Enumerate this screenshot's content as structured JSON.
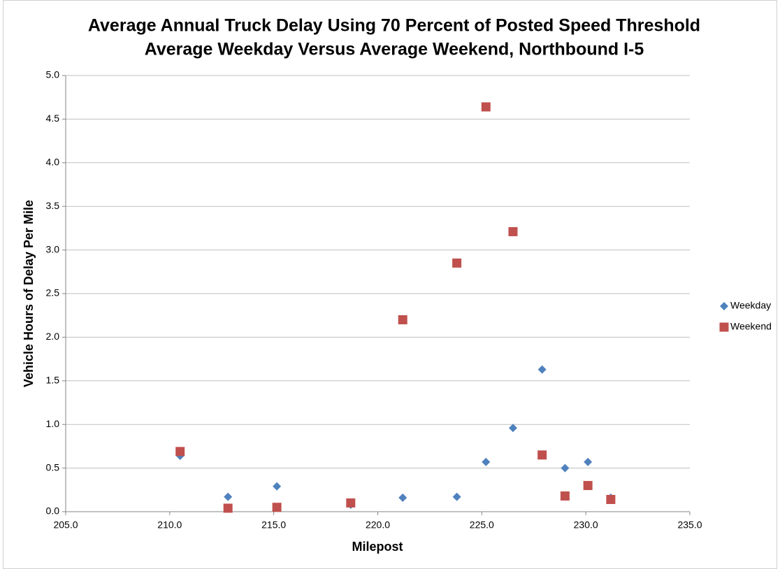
{
  "chart_data": {
    "type": "scatter",
    "title": "Average Annual Truck Delay Using 70 Percent of Posted Speed Threshold",
    "subtitle": "Average Weekday Versus Average Weekend, Northbound I-5",
    "x_label": "Milepost",
    "y_label": "Vehicle Hours of Delay Per Mile",
    "xlim": [
      205,
      235
    ],
    "xticks": [
      {
        "value": 205,
        "label": "205.0"
      },
      {
        "value": 210,
        "label": "210.0"
      },
      {
        "value": 215,
        "label": "215.0"
      },
      {
        "value": 220,
        "label": "220.0"
      },
      {
        "value": 225,
        "label": "225.0"
      },
      {
        "value": 230,
        "label": "230.0"
      },
      {
        "value": 235,
        "label": "235.0"
      }
    ],
    "ylim": [
      0,
      5
    ],
    "yticks": [
      {
        "value": 0,
        "label": "0.0"
      },
      0.5,
      {
        "value": 1,
        "label": "1.0"
      },
      1.5,
      {
        "value": 2,
        "label": "2.0"
      },
      2.5,
      {
        "value": 3,
        "label": "3.0"
      },
      3.5,
      {
        "value": 4,
        "label": "4.0"
      },
      4.5,
      {
        "value": 5,
        "label": "5.0"
      }
    ],
    "grid": true,
    "legend": "right",
    "series": [
      {
        "name": "Weekday",
        "color": "#4f81bd",
        "marker": "diamond",
        "x": [
          210.5,
          212.8,
          215.15,
          218.7,
          221.2,
          223.8,
          225.2,
          226.5,
          227.9,
          229.0,
          230.1,
          231.2
        ],
        "values": [
          0.64,
          0.17,
          0.29,
          0.08,
          0.16,
          0.17,
          0.57,
          0.96,
          1.63,
          0.5,
          0.57,
          0.16
        ]
      },
      {
        "name": "Weekend",
        "color": "#c0504d",
        "marker": "square",
        "x": [
          210.5,
          212.8,
          215.15,
          218.7,
          221.2,
          223.8,
          225.2,
          226.5,
          227.9,
          229.0,
          230.1,
          231.2
        ],
        "values": [
          0.69,
          0.04,
          0.05,
          0.1,
          2.2,
          2.85,
          4.64,
          3.21,
          0.65,
          0.18,
          0.3,
          0.14
        ]
      }
    ]
  }
}
